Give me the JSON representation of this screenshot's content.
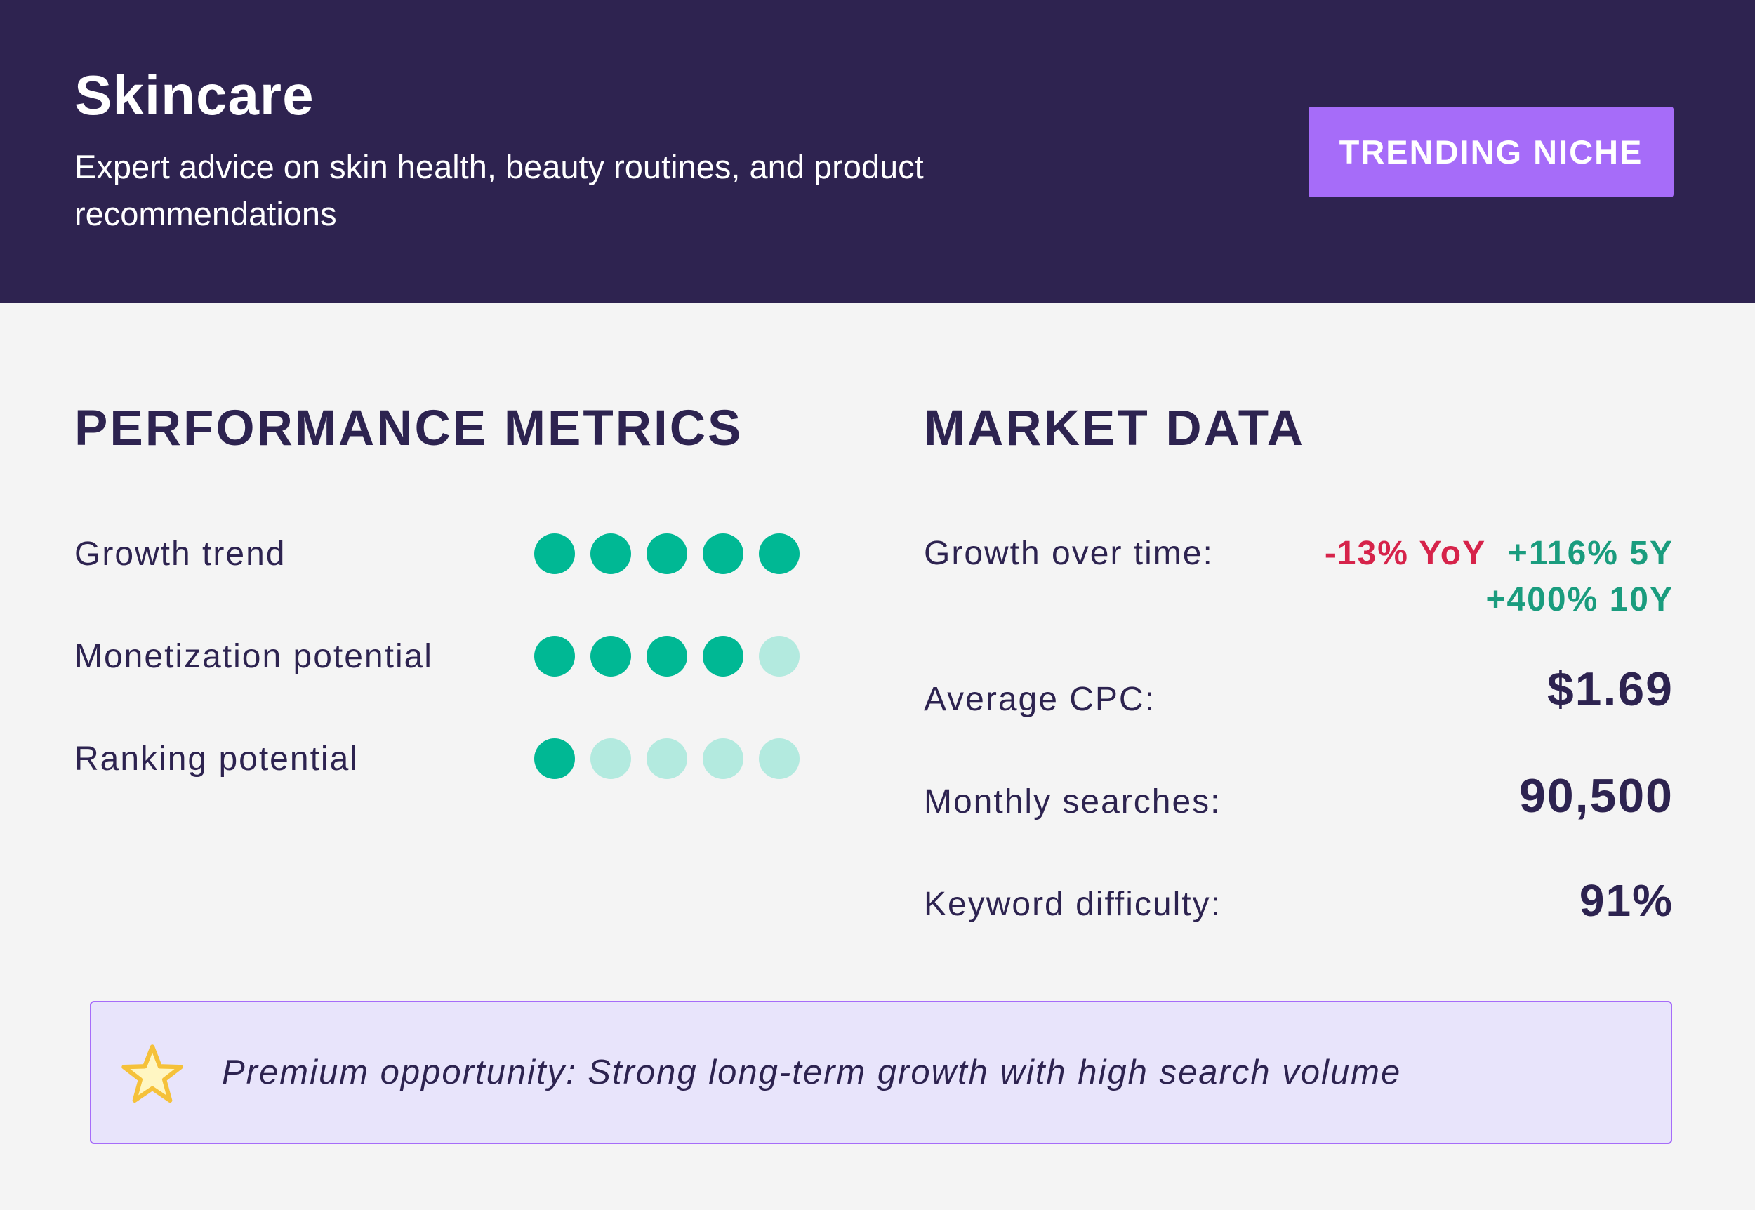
{
  "header": {
    "title": "Skincare",
    "subtitle": "Expert advice on skin health, beauty routines, and product recommendations",
    "badge": "TRENDING NICHE"
  },
  "performance": {
    "title": "PERFORMANCE METRICS",
    "metrics": [
      {
        "label": "Growth trend",
        "rating": 5,
        "max": 5
      },
      {
        "label": "Monetization potential",
        "rating": 4,
        "max": 5
      },
      {
        "label": "Ranking potential",
        "rating": 1,
        "max": 5
      }
    ]
  },
  "market": {
    "title": "MARKET DATA",
    "growth_label": "Growth over time:",
    "growth_yoy": "-13% YoY",
    "growth_5y": "+116% 5Y",
    "growth_10y": "+400% 10Y",
    "cpc_label": "Average CPC:",
    "cpc_value": "$1.69",
    "searches_label": "Monthly searches:",
    "searches_value": "90,500",
    "difficulty_label": "Keyword difficulty:",
    "difficulty_value": "91%"
  },
  "callout": {
    "icon": "star-icon",
    "text": "Premium opportunity: Strong long-term growth with high search volume"
  },
  "colors": {
    "header_bg": "#2e2350",
    "badge_bg": "#a66cf9",
    "dot_on": "#00b894",
    "dot_off": "#b3eadf",
    "negative": "#d6234a",
    "positive": "#1a9c7e"
  }
}
